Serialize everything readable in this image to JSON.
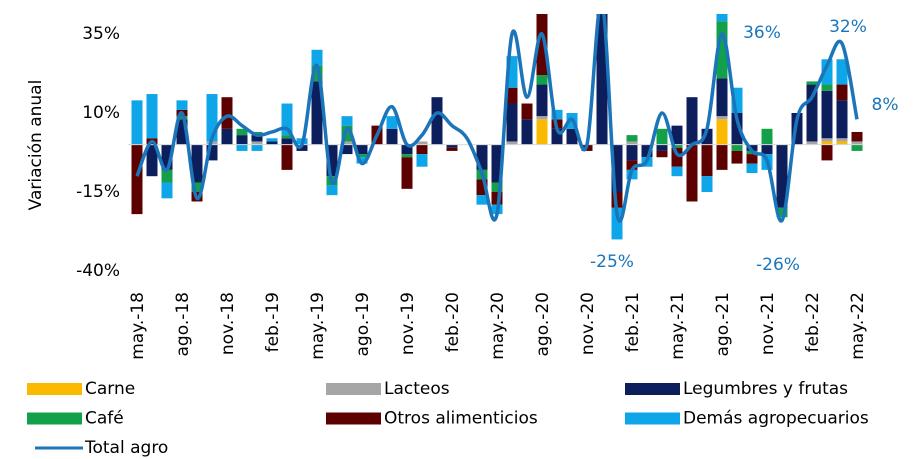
{
  "chart_data": {
    "type": "bar",
    "y_label": "Variación anual",
    "categories": [
      "may.-18",
      null,
      null,
      "ago.-18",
      null,
      null,
      "nov.-18",
      null,
      null,
      "feb.-19",
      null,
      null,
      "may.-19",
      null,
      null,
      "ago.-19",
      null,
      null,
      "nov.-19",
      null,
      null,
      "feb.-20",
      null,
      null,
      "may.-20",
      null,
      null,
      "ago.-20",
      null,
      null,
      "nov.-20",
      null,
      null,
      "feb.-21",
      null,
      null,
      "may.-21",
      null,
      null,
      "ago.-21",
      null,
      null,
      "nov.-21",
      null,
      null,
      "feb.-22",
      null,
      null,
      "may.-22"
    ],
    "ylim": [
      -40,
      41
    ],
    "yticks": [
      {
        "value": -40,
        "label": "-40%"
      },
      {
        "value": -15,
        "label": "-15%"
      },
      {
        "value": 10,
        "label": "10%"
      },
      {
        "value": 35,
        "label": "35%"
      }
    ],
    "legend": "bottom",
    "series": [
      {
        "name": "Carne",
        "color": "#fbb900",
        "values": [
          0,
          0,
          0,
          0,
          0,
          0,
          0,
          0,
          0,
          0,
          0,
          0,
          0,
          0,
          0,
          0,
          0,
          0,
          0,
          0,
          0,
          0,
          0,
          0,
          0,
          0,
          0,
          8,
          0,
          0,
          0,
          0,
          0,
          0,
          0,
          0,
          0,
          0,
          0,
          8,
          0,
          0,
          0,
          0,
          0,
          0,
          1,
          1,
          0
        ]
      },
      {
        "name": "Lacteos",
        "color": "#a6a6a6",
        "values": [
          0,
          0,
          0,
          0,
          0,
          1,
          0,
          0,
          1,
          0,
          0,
          0,
          0,
          0,
          1,
          0,
          0,
          0,
          0,
          1,
          0,
          0,
          0,
          0,
          0,
          1,
          0,
          1,
          0,
          0,
          0,
          0,
          0,
          1,
          0,
          0,
          0,
          0,
          0,
          1,
          0,
          0,
          0,
          0,
          0,
          1,
          1,
          1,
          1
        ]
      },
      {
        "name": "Legumbres y frutas",
        "color": "#0c1f5c",
        "values": [
          0,
          -10,
          -8,
          8,
          -12,
          -5,
          5,
          3,
          2,
          1,
          2,
          -2,
          20,
          -10,
          -3,
          -3,
          0,
          5,
          -3,
          0,
          15,
          -1,
          0,
          -8,
          -12,
          12,
          8,
          10,
          5,
          5,
          0,
          45,
          -15,
          -5,
          -4,
          -2,
          6,
          15,
          5,
          12,
          10,
          -2,
          -3,
          -20,
          10,
          18,
          15,
          12,
          0
        ]
      },
      {
        "name": "Café",
        "color": "#14a04a",
        "values": [
          0,
          0,
          -4,
          1,
          -3,
          0,
          0,
          2,
          1,
          0,
          1,
          0,
          5,
          -3,
          5,
          -1,
          0,
          0,
          -1,
          0,
          0,
          0,
          0,
          -3,
          -3,
          0,
          0,
          3,
          0,
          0,
          0,
          0,
          0,
          2,
          0,
          5,
          -1,
          0,
          0,
          18,
          -2,
          -1,
          5,
          -3,
          0,
          1,
          2,
          0,
          -2
        ]
      },
      {
        "name": "Otros alimenticios",
        "color": "#5c0000",
        "values": [
          -22,
          2,
          0,
          2,
          -3,
          0,
          10,
          0,
          0,
          0,
          -8,
          0,
          0,
          0,
          0,
          0,
          6,
          0,
          -10,
          -3,
          0,
          -1,
          0,
          -5,
          -4,
          5,
          5,
          20,
          3,
          0,
          -2,
          0,
          -5,
          -3,
          0,
          -2,
          -6,
          -18,
          -10,
          -8,
          -4,
          -3,
          0,
          0,
          0,
          0,
          -5,
          5,
          3
        ]
      },
      {
        "name": "Demás agropecuarios",
        "color": "#0ea5e9",
        "values": [
          14,
          14,
          -5,
          3,
          0,
          15,
          0,
          -2,
          -2,
          1,
          10,
          2,
          5,
          -3,
          3,
          -2,
          0,
          4,
          0,
          -4,
          0,
          0,
          0,
          -3,
          -3,
          10,
          0,
          10,
          3,
          5,
          0,
          0,
          -10,
          -3,
          -3,
          0,
          -3,
          0,
          -5,
          15,
          8,
          -3,
          -5,
          0,
          0,
          0,
          8,
          8,
          0
        ]
      },
      {
        "name": "Total agro",
        "type": "line",
        "color": "#1b75bb",
        "values": [
          -10,
          1,
          -8,
          10,
          -17,
          2,
          9,
          6,
          3,
          4,
          5,
          0,
          25,
          -12,
          5,
          -6,
          3,
          12,
          0,
          3,
          10,
          6,
          2,
          -9,
          -22,
          35,
          15,
          35,
          5,
          8,
          0,
          45,
          -22,
          -8,
          -5,
          10,
          -3,
          0,
          5,
          35,
          8,
          -2,
          -5,
          -24,
          8,
          15,
          25,
          32,
          8
        ]
      }
    ],
    "annotations": [
      "36%",
      "32%",
      "8%",
      "-25%",
      "-26%"
    ]
  }
}
